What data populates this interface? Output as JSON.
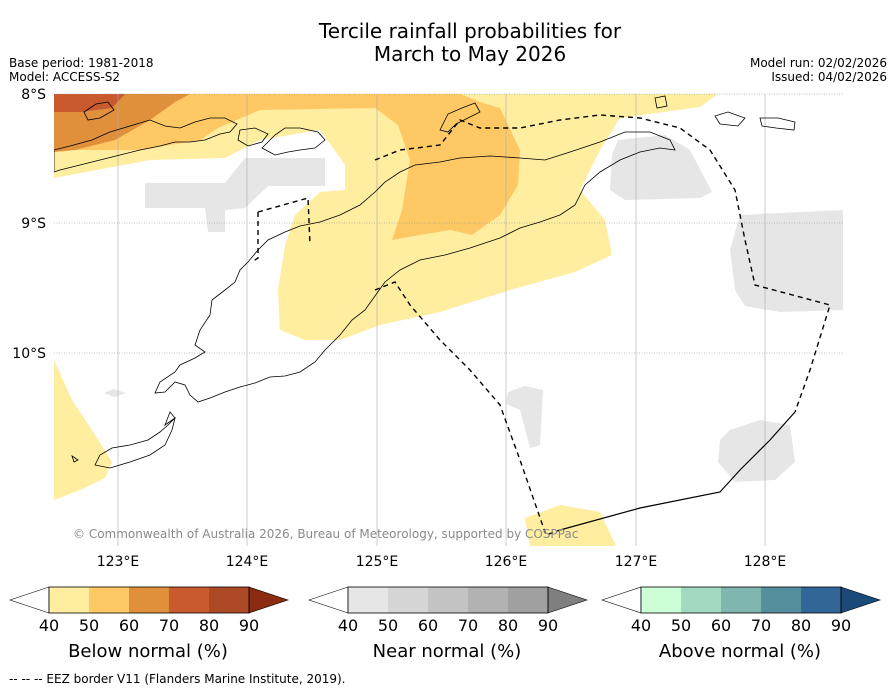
{
  "header": {
    "title_line1": "Tercile rainfall probabilities for",
    "title_line2": "March to May 2026",
    "base_period": "Base period: 1981-2018",
    "model": "Model: ACCESS-S2",
    "model_run": "Model run: 02/02/2026",
    "issued": "Issued: 04/02/2026"
  },
  "map": {
    "lat_labels": [
      "8°S",
      "9°S",
      "10°S"
    ],
    "lon_labels": [
      "123°E",
      "124°E",
      "125°E",
      "126°E",
      "127°E",
      "128°E"
    ],
    "copyright": "© Commonwealth of Australia 2026, Bureau of Meteorology, supported by COSPPac",
    "colors": {
      "below_50": "#ffeda0",
      "below_60": "#fec965",
      "below_70": "#e08f3b",
      "below_80": "#c85a2e",
      "near_40": "#e6e6e6",
      "land_outline": "#000000",
      "eez": "#000000"
    }
  },
  "colorbars": [
    {
      "label": "Below normal (%)",
      "ticks": [
        "40",
        "50",
        "60",
        "70",
        "80",
        "90"
      ],
      "colors": [
        "#ffffff",
        "#ffeda0",
        "#fec965",
        "#e08f3b",
        "#c85a2e",
        "#ad4a25",
        "#8b2b14"
      ]
    },
    {
      "label": "Near normal (%)",
      "ticks": [
        "40",
        "50",
        "60",
        "70",
        "80",
        "90"
      ],
      "colors": [
        "#ffffff",
        "#e6e6e6",
        "#d6d6d6",
        "#c4c4c4",
        "#b2b2b2",
        "#a0a0a0",
        "#7f7f7f"
      ]
    },
    {
      "label": "Above normal (%)",
      "ticks": [
        "40",
        "50",
        "60",
        "70",
        "80",
        "90"
      ],
      "colors": [
        "#ffffff",
        "#ccffd6",
        "#a2d9c0",
        "#7fb6b0",
        "#558f9e",
        "#316696",
        "#1b4a7a"
      ]
    }
  ],
  "footer": {
    "legend": "--  --  -- EEZ border V11 (Flanders Marine Institute, 2019)."
  }
}
